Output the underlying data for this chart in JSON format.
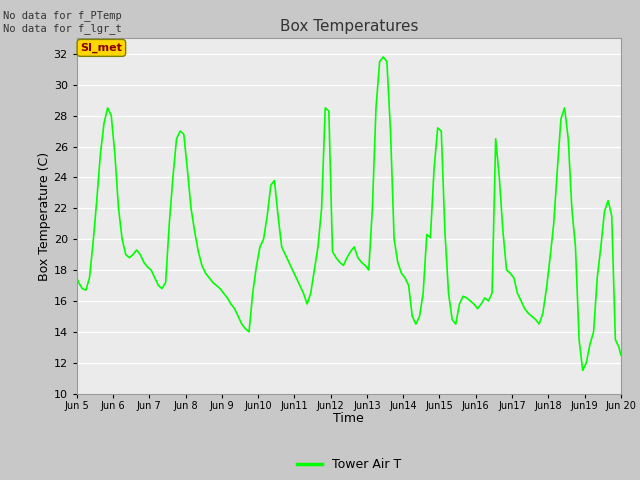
{
  "title": "Box Temperatures",
  "xlabel": "Time",
  "ylabel": "Box Temperature (C)",
  "ylim": [
    10,
    33
  ],
  "yticks": [
    10,
    12,
    14,
    16,
    18,
    20,
    22,
    24,
    26,
    28,
    30,
    32
  ],
  "line_color": "#00FF00",
  "line_width": 1.2,
  "fig_bg_color": "#C8C8C8",
  "plot_bg_color": "#EBEBEB",
  "legend_label": "Tower Air T",
  "annotation_text": "No data for f_PTemp\nNo data for f_lgr_t",
  "label_box_text": "SI_met",
  "label_box_facecolor": "#FFD700",
  "label_box_edgecolor": "#808000",
  "label_box_text_color": "#8B0000",
  "xtick_positions": [
    5,
    6,
    7,
    8,
    9,
    10,
    11,
    12,
    13,
    14,
    15,
    16,
    17,
    18,
    19,
    20
  ],
  "xtick_labels": [
    "Jun 5",
    "Jun 6",
    "Jun 7",
    "Jun 8",
    "Jun 9",
    "Jun 10",
    "Jun 11",
    "Jun 12",
    "Jun 13",
    "Jun 14",
    "Jun 15",
    "Jun 16",
    "Jun 17",
    "Jun 18",
    "Jun 19",
    "Jun 20"
  ],
  "time_x": [
    5.0,
    5.05,
    5.15,
    5.25,
    5.35,
    5.45,
    5.55,
    5.65,
    5.75,
    5.85,
    5.95,
    6.05,
    6.15,
    6.25,
    6.35,
    6.45,
    6.55,
    6.65,
    6.75,
    6.85,
    6.95,
    7.05,
    7.15,
    7.25,
    7.35,
    7.45,
    7.55,
    7.65,
    7.75,
    7.85,
    7.95,
    8.05,
    8.15,
    8.25,
    8.35,
    8.45,
    8.55,
    8.65,
    8.75,
    8.85,
    8.95,
    9.05,
    9.15,
    9.25,
    9.35,
    9.45,
    9.55,
    9.65,
    9.75,
    9.85,
    9.95,
    10.05,
    10.15,
    10.25,
    10.35,
    10.45,
    10.55,
    10.65,
    10.75,
    10.85,
    10.95,
    11.05,
    11.15,
    11.25,
    11.35,
    11.45,
    11.55,
    11.65,
    11.75,
    11.85,
    11.95,
    12.05,
    12.15,
    12.25,
    12.35,
    12.45,
    12.55,
    12.65,
    12.75,
    12.85,
    12.95,
    13.05,
    13.15,
    13.25,
    13.35,
    13.45,
    13.55,
    13.65,
    13.75,
    13.85,
    13.95,
    14.05,
    14.15,
    14.25,
    14.35,
    14.45,
    14.55,
    14.65,
    14.75,
    14.85,
    14.95,
    15.05,
    15.15,
    15.25,
    15.35,
    15.45,
    15.55,
    15.65,
    15.75,
    15.85,
    15.95,
    16.05,
    16.15,
    16.25,
    16.35,
    16.45,
    16.55,
    16.65,
    16.75,
    16.85,
    16.95,
    17.05,
    17.15,
    17.25,
    17.35,
    17.45,
    17.55,
    17.65,
    17.75,
    17.85,
    17.95,
    18.05,
    18.15,
    18.25,
    18.35,
    18.45,
    18.55,
    18.65,
    18.75,
    18.85,
    18.95,
    19.05,
    19.15,
    19.25,
    19.35,
    19.45,
    19.55,
    19.65,
    19.75,
    19.85,
    19.95,
    20.0
  ],
  "temp_y": [
    17.5,
    17.2,
    16.8,
    16.7,
    17.5,
    19.8,
    22.5,
    25.5,
    27.5,
    28.5,
    28.0,
    25.5,
    22.0,
    20.0,
    19.0,
    18.8,
    19.0,
    19.3,
    19.0,
    18.5,
    18.2,
    18.0,
    17.5,
    17.0,
    16.8,
    17.2,
    21.0,
    24.0,
    26.5,
    27.0,
    26.8,
    24.5,
    22.0,
    20.5,
    19.2,
    18.3,
    17.8,
    17.5,
    17.2,
    17.0,
    16.8,
    16.5,
    16.2,
    15.8,
    15.5,
    15.0,
    14.5,
    14.2,
    14.0,
    16.5,
    18.2,
    19.5,
    20.0,
    21.5,
    23.5,
    23.8,
    21.5,
    19.5,
    19.0,
    18.5,
    18.0,
    17.5,
    17.0,
    16.5,
    15.8,
    16.5,
    18.0,
    19.5,
    22.0,
    28.5,
    28.3,
    19.2,
    18.8,
    18.5,
    18.3,
    18.8,
    19.2,
    19.5,
    18.8,
    18.5,
    18.3,
    18.0,
    22.0,
    28.5,
    31.5,
    31.8,
    31.5,
    27.0,
    20.0,
    18.5,
    17.8,
    17.5,
    17.0,
    15.0,
    14.5,
    15.0,
    16.5,
    20.3,
    20.1,
    24.5,
    27.2,
    27.0,
    20.5,
    16.5,
    14.8,
    14.5,
    15.8,
    16.3,
    16.2,
    16.0,
    15.8,
    15.5,
    15.8,
    16.2,
    16.0,
    16.5,
    26.5,
    24.0,
    20.5,
    18.0,
    17.8,
    17.5,
    16.5,
    16.0,
    15.5,
    15.2,
    15.0,
    14.8,
    14.5,
    15.2,
    16.8,
    18.8,
    21.0,
    24.5,
    27.8,
    28.5,
    26.5,
    22.0,
    19.5,
    13.5,
    11.5,
    12.0,
    13.2,
    14.0,
    17.5,
    19.5,
    21.8,
    22.5,
    21.5,
    13.5,
    13.0,
    12.5
  ]
}
